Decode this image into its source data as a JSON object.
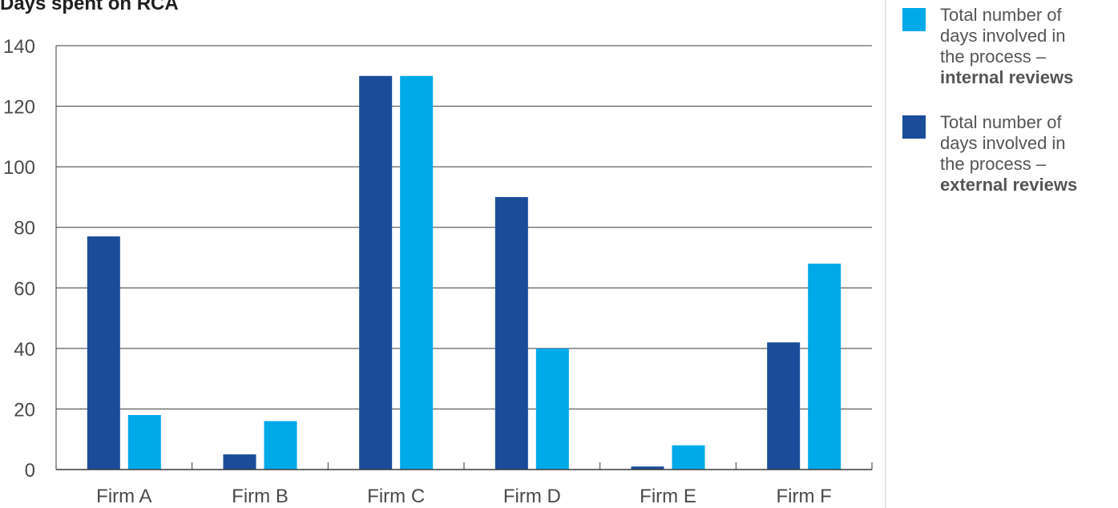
{
  "chart_data": {
    "type": "bar",
    "title": "Days spent on RCA",
    "xlabel": "",
    "ylabel": "",
    "categories": [
      "Firm A",
      "Firm B",
      "Firm C",
      "Firm D",
      "Firm E",
      "Firm F"
    ],
    "ylim": [
      0,
      140
    ],
    "yticks": [
      "0",
      "20",
      "40",
      "60",
      "80",
      "100",
      "120",
      "140"
    ],
    "grid": true,
    "legend_position": "right",
    "series": [
      {
        "name": "Total number of days involved in the process – external reviews",
        "color": "#1a4c9a",
        "values": [
          77,
          5,
          130,
          90,
          1,
          42
        ]
      },
      {
        "name": "Total number of days involved in the process – internal reviews",
        "color": "#00a9e8",
        "values": [
          18,
          16,
          130,
          40,
          8,
          68
        ]
      }
    ]
  },
  "legend": [
    {
      "lines": [
        "Total number of",
        "days involved in",
        "the process –"
      ],
      "bold": "internal reviews",
      "color": "#00a9e8"
    },
    {
      "lines": [
        "Total number of",
        "days involved in",
        "the process –"
      ],
      "bold": "external reviews",
      "color": "#1a4c9a"
    }
  ]
}
